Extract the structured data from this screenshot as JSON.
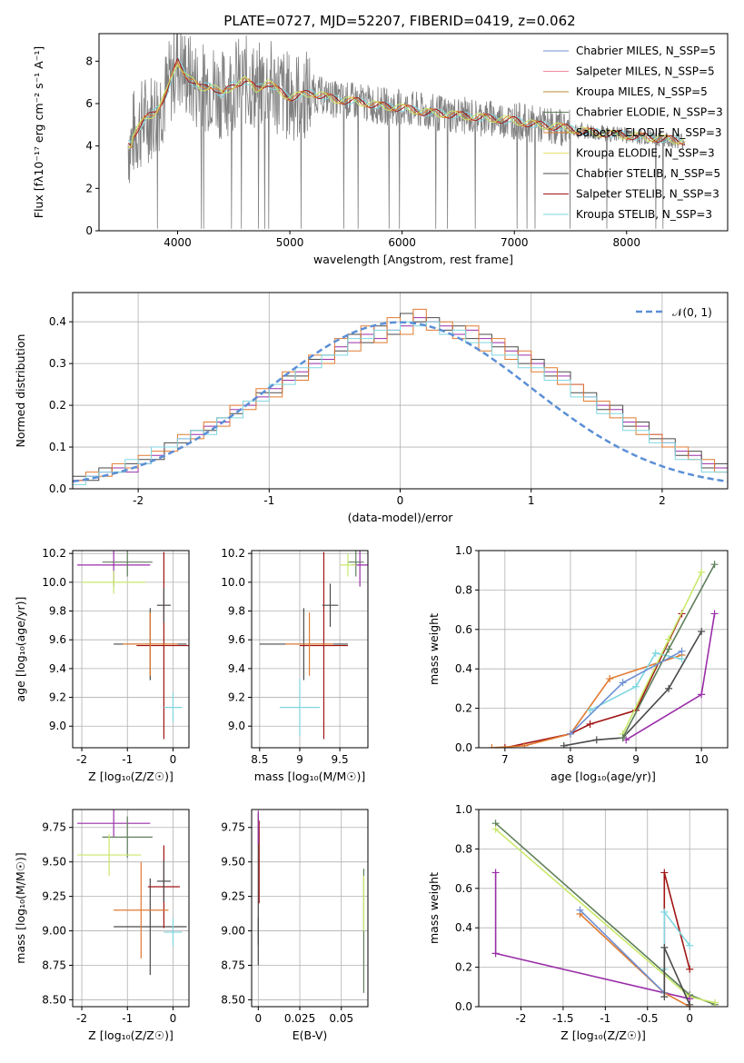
{
  "figure": {
    "title": "PLATE=0727, MJD=52207, FIBERID=0419, z=0.062"
  },
  "chart_data": [
    {
      "id": "spectrum",
      "type": "line",
      "title": "PLATE=0727, MJD=52207, FIBERID=0419, z=0.062",
      "xlabel": "wavelength [Angstrom, rest frame]",
      "ylabel": "Flux [fλ10⁻¹⁷ erg cm⁻² s⁻¹ A⁻¹]",
      "xlim": [
        3300,
        8900
      ],
      "ylim": [
        0,
        9.3
      ],
      "xticks": [
        4000,
        5000,
        6000,
        7000,
        8000
      ],
      "yticks": [
        0,
        2,
        4,
        6,
        8
      ],
      "grid": false,
      "legend_position": "top-right",
      "legend": [
        "Chabrier MILES, N_SSP=5",
        "Salpeter MILES, N_SSP=5",
        "Kroupa MILES, N_SSP=5",
        "Chabrier ELODIE, N_SSP=3",
        "Salpeter ELODIE, N_SSP=3",
        "Kroupa ELODIE, N_SSP=3",
        "Chabrier STELIB, N_SSP=5",
        "Salpeter STELIB, N_SSP=3",
        "Kroupa STELIB, N_SSP=3"
      ],
      "data_x": [
        3600,
        3700,
        3800,
        3900,
        4000,
        4100,
        4200,
        4300,
        4400,
        4500,
        4600,
        4700,
        4800,
        4900,
        5000,
        5200,
        5400,
        5600,
        5800,
        6000,
        6200,
        6400,
        6600,
        6800,
        7000,
        7200,
        7400,
        7600,
        7800,
        8000,
        8200,
        8400,
        8600,
        8800
      ],
      "data_y": [
        4.5,
        5.2,
        5.6,
        6.5,
        8.0,
        7.2,
        6.7,
        6.9,
        6.4,
        6.9,
        7.1,
        6.7,
        7.0,
        6.6,
        6.3,
        6.5,
        6.2,
        6.1,
        5.9,
        5.8,
        5.6,
        5.5,
        5.4,
        5.3,
        5.2,
        5.0,
        4.9,
        4.7,
        4.6,
        4.5,
        4.4,
        4.3,
        4.2,
        4.1
      ]
    },
    {
      "id": "residuals",
      "type": "line",
      "xlabel": "(data-model)/error",
      "ylabel": "Normed distribution",
      "xlim": [
        -2.5,
        2.5
      ],
      "ylim": [
        0,
        0.47
      ],
      "xticks": [
        -2,
        -1,
        0,
        1,
        2
      ],
      "yticks": [
        0.0,
        0.1,
        0.2,
        0.3,
        0.4
      ],
      "grid": true,
      "legend_position": "top-right",
      "legend": [
        "𝒩(0, 1)"
      ],
      "bin_width": 0.1,
      "series_hist": [
        [
          0.02,
          0.03,
          0.04,
          0.05,
          0.04,
          0.06,
          0.08,
          0.1,
          0.12,
          0.13,
          0.15,
          0.16,
          0.19,
          0.2,
          0.22,
          0.24,
          0.26,
          0.28,
          0.3,
          0.31,
          0.34,
          0.35,
          0.37,
          0.36,
          0.38,
          0.39,
          0.41,
          0.4,
          0.39,
          0.37,
          0.38,
          0.36,
          0.35,
          0.33,
          0.32,
          0.3,
          0.28,
          0.27,
          0.25,
          0.22,
          0.2,
          0.19,
          0.16,
          0.15,
          0.13,
          0.11,
          0.09,
          0.08,
          0.06,
          0.05
        ],
        [
          0.03,
          0.02,
          0.05,
          0.04,
          0.06,
          0.07,
          0.07,
          0.11,
          0.11,
          0.14,
          0.14,
          0.17,
          0.18,
          0.21,
          0.23,
          0.23,
          0.27,
          0.27,
          0.31,
          0.32,
          0.33,
          0.37,
          0.35,
          0.39,
          0.37,
          0.42,
          0.4,
          0.41,
          0.38,
          0.39,
          0.36,
          0.37,
          0.34,
          0.34,
          0.3,
          0.31,
          0.27,
          0.28,
          0.23,
          0.23,
          0.19,
          0.2,
          0.15,
          0.16,
          0.12,
          0.12,
          0.08,
          0.09,
          0.05,
          0.06
        ],
        [
          0.02,
          0.04,
          0.03,
          0.06,
          0.05,
          0.08,
          0.09,
          0.09,
          0.13,
          0.12,
          0.16,
          0.15,
          0.2,
          0.19,
          0.24,
          0.22,
          0.28,
          0.26,
          0.32,
          0.3,
          0.36,
          0.33,
          0.39,
          0.35,
          0.41,
          0.37,
          0.43,
          0.38,
          0.4,
          0.36,
          0.39,
          0.33,
          0.36,
          0.31,
          0.33,
          0.28,
          0.29,
          0.25,
          0.25,
          0.21,
          0.21,
          0.17,
          0.17,
          0.13,
          0.13,
          0.1,
          0.1,
          0.07,
          0.07,
          0.04
        ],
        [
          0.01,
          0.03,
          0.04,
          0.04,
          0.07,
          0.06,
          0.1,
          0.1,
          0.12,
          0.14,
          0.13,
          0.17,
          0.17,
          0.21,
          0.21,
          0.25,
          0.25,
          0.29,
          0.29,
          0.32,
          0.32,
          0.36,
          0.36,
          0.38,
          0.38,
          0.4,
          0.39,
          0.4,
          0.37,
          0.38,
          0.35,
          0.35,
          0.32,
          0.32,
          0.29,
          0.29,
          0.26,
          0.26,
          0.22,
          0.22,
          0.18,
          0.18,
          0.14,
          0.14,
          0.11,
          0.11,
          0.07,
          0.07,
          0.04,
          0.04
        ]
      ],
      "gaussian_mean": 0,
      "gaussian_sigma": 1
    },
    {
      "id": "age-vs-Z",
      "type": "scatter",
      "xlabel": "Z [log₁₀(Z/Z☉)]",
      "ylabel": "age  [log₁₀(age/yr)]",
      "xlim": [
        -2.2,
        0.35
      ],
      "ylim": [
        8.85,
        10.22
      ],
      "xticks": [
        -2,
        -1,
        0
      ],
      "yticks": [
        9.0,
        9.2,
        9.4,
        9.6,
        9.8,
        10.0,
        10.2
      ],
      "grid": true,
      "points": [
        {
          "x": -0.5,
          "y": 9.57,
          "xerr": 0.8,
          "yerr": 0.25
        },
        {
          "x": -0.2,
          "y": 9.56,
          "xerr": 0.6,
          "yerr": 0.65
        },
        {
          "x": -0.2,
          "y": 9.84,
          "xerr": 0.15,
          "yerr": 0.12
        },
        {
          "x": -1.3,
          "y": 10.12,
          "xerr": 0.8,
          "yerr": 0.15
        },
        {
          "x": -1.0,
          "y": 10.14,
          "xerr": 0.55,
          "yerr": 0.1
        },
        {
          "x": -1.3,
          "y": 10.0,
          "xerr": 0.7,
          "yerr": 0.08
        },
        {
          "x": -0.5,
          "y": 9.57,
          "xerr": 0.6,
          "yerr": 0.22
        },
        {
          "x": 0.0,
          "y": 9.13,
          "xerr": 0.2,
          "yerr": 0.1
        }
      ]
    },
    {
      "id": "age-vs-mass",
      "type": "scatter",
      "xlabel": "mass [log₁₀(M/M☉)]",
      "ylabel": "",
      "xlim": [
        8.4,
        9.85
      ],
      "ylim": [
        8.85,
        10.22
      ],
      "xticks": [
        8.5,
        9.0,
        9.5
      ],
      "yticks": [
        9.0,
        9.2,
        9.4,
        9.6,
        9.8,
        10.0,
        10.2
      ],
      "grid": true,
      "points": [
        {
          "x": 9.05,
          "y": 9.57,
          "xerr": 0.55,
          "yerr": 0.25
        },
        {
          "x": 9.3,
          "y": 9.56,
          "xerr": 0.3,
          "yerr": 0.65
        },
        {
          "x": 9.38,
          "y": 9.84,
          "xerr": 0.1,
          "yerr": 0.15
        },
        {
          "x": 9.75,
          "y": 10.12,
          "xerr": 0.1,
          "yerr": 0.15
        },
        {
          "x": 9.7,
          "y": 10.14,
          "xerr": 0.1,
          "yerr": 0.1
        },
        {
          "x": 9.6,
          "y": 10.12,
          "xerr": 0.1,
          "yerr": 0.08
        },
        {
          "x": 9.12,
          "y": 9.57,
          "xerr": 0.3,
          "yerr": 0.22
        },
        {
          "x": 9.0,
          "y": 9.13,
          "xerr": 0.25,
          "yerr": 0.2
        }
      ]
    },
    {
      "id": "weight-vs-age",
      "type": "line",
      "xlabel": "age  [log₁₀(age/yr)]",
      "ylabel": "mass weight",
      "xlim": [
        6.6,
        10.4
      ],
      "ylim": [
        0,
        1.0
      ],
      "xticks": [
        7,
        8,
        9,
        10
      ],
      "yticks": [
        0.0,
        0.2,
        0.4,
        0.6,
        0.8,
        1.0
      ],
      "grid": true,
      "series": [
        {
          "color": "#4a4a4a",
          "x": [
            7.9,
            8.4,
            8.8,
            9.5,
            10.0
          ],
          "y": [
            0.01,
            0.04,
            0.05,
            0.3,
            0.59
          ]
        },
        {
          "color": "#a01414",
          "x": [
            7.0,
            8.0,
            8.3,
            9.0,
            9.7
          ],
          "y": [
            0.0,
            0.07,
            0.12,
            0.19,
            0.68
          ]
        },
        {
          "color": "#e07a30",
          "x": [
            6.8,
            7.3,
            8.0,
            8.6,
            9.7
          ],
          "y": [
            0.0,
            0.01,
            0.07,
            0.35,
            0.47
          ]
        },
        {
          "color": "#7fd6e0",
          "x": [
            8.3,
            9.0,
            9.3,
            9.7
          ],
          "y": [
            0.19,
            0.31,
            0.48,
            0.45
          ]
        },
        {
          "color": "#9a2ea8",
          "x": [
            8.85,
            10.0,
            10.2
          ],
          "y": [
            0.04,
            0.27,
            0.68
          ]
        },
        {
          "color": "#c9e86a",
          "x": [
            8.8,
            9.5,
            10.0
          ],
          "y": [
            0.07,
            0.55,
            0.89
          ]
        },
        {
          "color": "#5e7f5a",
          "x": [
            8.8,
            9.5,
            10.2
          ],
          "y": [
            0.05,
            0.5,
            0.93
          ]
        },
        {
          "color": "#6d8fd3",
          "x": [
            8.0,
            8.8,
            9.7
          ],
          "y": [
            0.07,
            0.33,
            0.49
          ]
        }
      ]
    },
    {
      "id": "mass-vs-Z",
      "type": "scatter",
      "xlabel": "Z [log₁₀(Z/Z☉)]",
      "ylabel": "mass [log₁₀(M/M☉)]",
      "xlim": [
        -2.2,
        0.35
      ],
      "ylim": [
        8.45,
        9.88
      ],
      "xticks": [
        -2,
        -1,
        0
      ],
      "yticks": [
        8.5,
        8.75,
        9.0,
        9.25,
        9.5,
        9.75
      ],
      "grid": true,
      "points": [
        {
          "x": -0.5,
          "y": 9.03,
          "xerr": 0.8,
          "yerr": 0.35
        },
        {
          "x": -0.2,
          "y": 9.32,
          "xerr": 0.35,
          "yerr": 0.3
        },
        {
          "x": -0.2,
          "y": 9.36,
          "xerr": 0.15,
          "yerr": 0.15
        },
        {
          "x": -1.3,
          "y": 9.78,
          "xerr": 0.8,
          "yerr": 0.1
        },
        {
          "x": -1.0,
          "y": 9.68,
          "xerr": 0.55,
          "yerr": 0.15
        },
        {
          "x": -1.4,
          "y": 9.55,
          "xerr": 0.7,
          "yerr": 0.15
        },
        {
          "x": -0.7,
          "y": 9.15,
          "xerr": 0.6,
          "yerr": 0.35
        },
        {
          "x": 0.0,
          "y": 8.99,
          "xerr": 0.2,
          "yerr": 0.1
        }
      ]
    },
    {
      "id": "mass-vs-EBV",
      "type": "scatter",
      "xlabel": "E(B-V)",
      "ylabel": "",
      "xlim": [
        -0.004,
        0.066
      ],
      "ylim": [
        8.45,
        9.88
      ],
      "xticks": [
        0.0,
        0.025,
        0.05
      ],
      "yticks": [
        8.5,
        8.75,
        9.0,
        9.25,
        9.5,
        9.75
      ],
      "grid": true,
      "points": [
        {
          "x": 0.0,
          "y": 9.3,
          "xerr": 0.0,
          "yerr": 0.55
        },
        {
          "x": 0.0005,
          "y": 9.5,
          "xerr": 0.0,
          "yerr": 0.3
        },
        {
          "x": 0.0,
          "y": 9.0,
          "xerr": 0.0,
          "yerr": 0.1
        },
        {
          "x": 0.0,
          "y": 9.75,
          "xerr": 0.0,
          "yerr": 0.12
        },
        {
          "x": 0.0635,
          "y": 9.0,
          "xerr": 0.0,
          "yerr": 0.45
        },
        {
          "x": 0.0635,
          "y": 9.2,
          "xerr": 0.0,
          "yerr": 0.2
        }
      ]
    },
    {
      "id": "weight-vs-Z",
      "type": "line",
      "xlabel": "Z [log₁₀(Z/Z☉)]",
      "ylabel": "mass weight",
      "xlim": [
        -2.5,
        0.45
      ],
      "ylim": [
        0,
        1.0
      ],
      "xticks": [
        -2.0,
        -1.5,
        -1.0,
        -0.5,
        0.0
      ],
      "yticks": [
        0.0,
        0.2,
        0.4,
        0.6,
        0.8,
        1.0
      ],
      "grid": true,
      "series": [
        {
          "color": "#5e7f5a",
          "x": [
            -2.3,
            0.0,
            0.3
          ],
          "y": [
            0.93,
            0.06,
            0.01
          ]
        },
        {
          "color": "#c9e86a",
          "x": [
            -2.3,
            0.0,
            0.3
          ],
          "y": [
            0.9,
            0.05,
            0.02
          ]
        },
        {
          "color": "#9a2ea8",
          "x": [
            -2.3,
            -2.3,
            0.0
          ],
          "y": [
            0.68,
            0.27,
            0.04
          ]
        },
        {
          "color": "#a01414",
          "x": [
            -0.3,
            -0.3,
            0.0
          ],
          "y": [
            0.07,
            0.68,
            0.19
          ]
        },
        {
          "color": "#e07a30",
          "x": [
            -1.3,
            -0.3,
            0.0
          ],
          "y": [
            0.47,
            0.07,
            0.0
          ]
        },
        {
          "color": "#6d8fd3",
          "x": [
            -1.3,
            -0.3
          ],
          "y": [
            0.49,
            0.07
          ]
        },
        {
          "color": "#7fd6e0",
          "x": [
            -0.3,
            -0.3,
            0.0
          ],
          "y": [
            0.19,
            0.48,
            0.31
          ]
        },
        {
          "color": "#4a4a4a",
          "x": [
            -0.3,
            -0.3,
            0.0
          ],
          "y": [
            0.05,
            0.3,
            0.01
          ]
        }
      ]
    }
  ],
  "colors": [
    "#6d8fd3",
    "#f08aa0",
    "#b8893a",
    "#5e7f5a",
    "#e07a30",
    "#e8e070",
    "#4a4a4a",
    "#a01414",
    "#7fd6e0",
    "#9a2ea8",
    "#c9e86a"
  ]
}
